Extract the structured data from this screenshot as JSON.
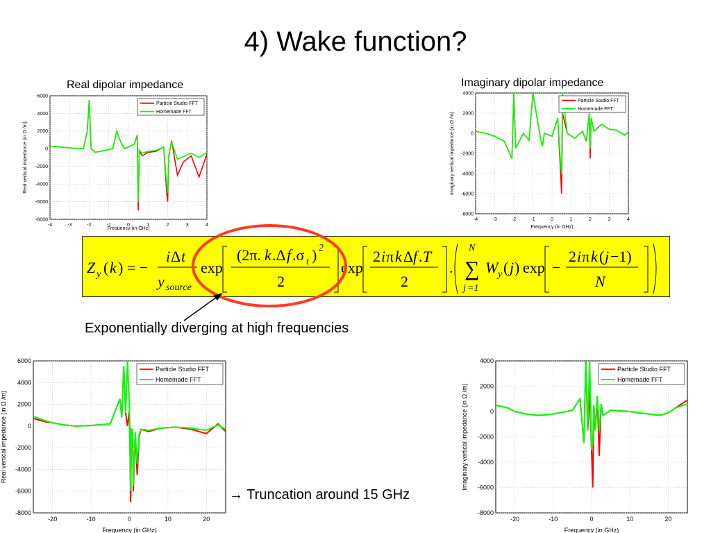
{
  "slide": {
    "title": "4) Wake function?",
    "annotation_exponential": "Exponentially diverging at high frequencies",
    "annotation_truncation_arrow": "→",
    "annotation_truncation": "Truncation around 15 GHz"
  },
  "colors": {
    "series_particle": "#ff0000",
    "series_homemade": "#00ff00",
    "formula_bg": "#ffff00",
    "highlight": "#ff3b1f"
  },
  "formula": {
    "lhs": "Z_y(k) = -",
    "frac1_num": "iΔt",
    "frac1_den": "y_source",
    "exp1": "exp[(2π.k.Δf.σ_t)^2 / 2]",
    "exp2": "exp[2iπkΔf.T / 2]",
    "sum": "∑_{j=1}^{N} W_y(j) exp[-2iπk(j-1)/N]"
  },
  "chart_data": [
    {
      "type": "line",
      "title": "Real dipolar impedance",
      "xlabel": "Frequency (in GHz)",
      "ylabel": "Real vertical impedance (in Ω /m)",
      "xlim": [
        -4,
        4
      ],
      "ylim": [
        -8000,
        6000
      ],
      "xticks": [
        "-4",
        "-3",
        "-2",
        "-1",
        "0",
        "1",
        "2",
        "3",
        "4"
      ],
      "yticks": [
        "6000",
        "4000",
        "2000",
        "0",
        "-2000",
        "-4000",
        "-6000",
        "-8000"
      ],
      "legend": [
        "Particle Studio FFT",
        "Homemade FFT"
      ],
      "legend_position": "top-right",
      "grid": true,
      "series": [
        {
          "name": "Particle Studio FFT",
          "color": "#ff0000",
          "x": [
            -4,
            -3.5,
            -3,
            -2.3,
            -2.1,
            -2,
            -1.9,
            -1.7,
            -1.2,
            -0.8,
            -0.6,
            -0.4,
            -0.2,
            0,
            0.3,
            0.45,
            0.5,
            0.55,
            0.7,
            1.0,
            1.4,
            1.8,
            1.95,
            2.0,
            2.05,
            2.1,
            2.2,
            2.5,
            2.8,
            3.2,
            3.6,
            4.0
          ],
          "y": [
            300,
            200,
            100,
            0,
            2000,
            5500,
            0,
            -400,
            -200,
            0,
            2000,
            800,
            0,
            200,
            500,
            1500,
            -7000,
            -200,
            -800,
            -400,
            -300,
            200,
            -5000,
            -6000,
            -1200,
            -300,
            900,
            -3000,
            -1500,
            -800,
            -3200,
            -600
          ]
        },
        {
          "name": "Homemade FFT",
          "color": "#00ff00",
          "x": [
            -4,
            -3.5,
            -3,
            -2.3,
            -2.1,
            -2,
            -1.9,
            -1.7,
            -1.2,
            -0.8,
            -0.6,
            -0.4,
            -0.2,
            0,
            0.3,
            0.45,
            0.5,
            0.55,
            0.7,
            1.0,
            1.4,
            1.8,
            1.95,
            2.0,
            2.05,
            2.1,
            2.2,
            2.5,
            2.8,
            3.2,
            3.6,
            4.0
          ],
          "y": [
            300,
            200,
            100,
            0,
            2000,
            5400,
            0,
            -400,
            -200,
            0,
            2000,
            800,
            0,
            200,
            500,
            1400,
            -6000,
            -200,
            -500,
            -300,
            -200,
            200,
            -4000,
            -5000,
            -900,
            -200,
            700,
            -1200,
            -900,
            -500,
            -1000,
            -400
          ]
        }
      ]
    },
    {
      "type": "line",
      "title": "Imaginary dipolar impedance",
      "xlabel": "Frequency (in GHz)",
      "ylabel": "Imaginary vertical impedance (in Ω /m)",
      "xlim": [
        -4,
        4
      ],
      "ylim": [
        -8000,
        4000
      ],
      "xticks": [
        "-4",
        "-3",
        "-2",
        "-1",
        "0",
        "1",
        "2",
        "3",
        "4"
      ],
      "yticks": [
        "4000",
        "2000",
        "0",
        "-2000",
        "-4000",
        "-6000",
        "-8000"
      ],
      "legend": [
        "Particle Studio FFT",
        "Homemade FFT"
      ],
      "legend_position": "top-right",
      "grid": true,
      "series": [
        {
          "name": "Particle Studio FFT",
          "color": "#ff0000",
          "x": [
            -4,
            -3.5,
            -3.0,
            -2.5,
            -2.1,
            -2.0,
            -1.9,
            -1.5,
            -1.2,
            -1.0,
            -0.6,
            -0.5,
            -0.4,
            0,
            0.3,
            0.45,
            0.5,
            0.55,
            0.8,
            1.2,
            1.6,
            1.8,
            1.95,
            2.0,
            2.05,
            2.2,
            2.6,
            3.0,
            3.4,
            3.8,
            4.0
          ],
          "y": [
            200,
            0,
            -300,
            -800,
            -2500,
            4000,
            -1500,
            0,
            -700,
            4000,
            -500,
            -1300,
            0,
            -300,
            1500,
            -4000,
            -6000,
            2000,
            0,
            -500,
            200,
            -800,
            2000,
            -2500,
            1500,
            200,
            900,
            400,
            300,
            -200,
            100
          ]
        },
        {
          "name": "Homemade FFT",
          "color": "#00ff00",
          "x": [
            -4,
            -3.5,
            -3.0,
            -2.5,
            -2.1,
            -2.0,
            -1.9,
            -1.5,
            -1.2,
            -1.0,
            -0.6,
            -0.5,
            -0.4,
            0,
            0.3,
            0.45,
            0.5,
            0.55,
            0.8,
            1.2,
            1.6,
            1.8,
            1.95,
            2.0,
            2.05,
            2.2,
            2.6,
            3.0,
            3.4,
            3.8,
            4.0
          ],
          "y": [
            200,
            0,
            -300,
            -800,
            -2500,
            4000,
            -1500,
            0,
            -700,
            4000,
            -500,
            -1300,
            0,
            -300,
            1500,
            -3000,
            -4000,
            4000,
            0,
            -500,
            200,
            -800,
            2000,
            -1500,
            1500,
            200,
            900,
            400,
            300,
            -200,
            100
          ]
        }
      ]
    },
    {
      "type": "line",
      "title": "",
      "xlabel": "Frequency (in GHz)",
      "ylabel": "Real vertical impedance (in Ω /m)",
      "xlim": [
        -25,
        25
      ],
      "ylim": [
        -8000,
        6000
      ],
      "xticks": [
        "-20",
        "-10",
        "0",
        "10",
        "20"
      ],
      "yticks": [
        "6000",
        "4000",
        "2000",
        "0",
        "-2000",
        "-4000",
        "-6000",
        "-8000"
      ],
      "legend": [
        "Particle Studio FFT",
        "Homemade FFT"
      ],
      "legend_position": "top-right",
      "grid": true,
      "series": [
        {
          "name": "Particle Studio FFT",
          "color": "#ff0000",
          "x": [
            -25,
            -22,
            -20,
            -17,
            -14,
            -10,
            -5,
            -2.5,
            -2,
            -1.5,
            -1,
            -0.5,
            0,
            0.3,
            0.5,
            0.8,
            1,
            1.5,
            2,
            2.5,
            3,
            5,
            8,
            12,
            16,
            20,
            23,
            25
          ],
          "y": [
            700,
            400,
            300,
            100,
            0,
            50,
            200,
            2500,
            800,
            5500,
            1200,
            0,
            1500,
            -7000,
            -300,
            -400,
            -6000,
            -600,
            -4500,
            -1000,
            -300,
            -500,
            -200,
            -100,
            -300,
            -700,
            200,
            -500
          ]
        },
        {
          "name": "Homemade FFT",
          "color": "#00ff00",
          "x": [
            -25,
            -22,
            -20,
            -17,
            -14,
            -10,
            -5,
            -2.5,
            -2,
            -1.5,
            -1,
            -0.5,
            0,
            0.3,
            0.5,
            0.8,
            1,
            1.5,
            2,
            2.5,
            3,
            5,
            8,
            12,
            16,
            20,
            23,
            25
          ],
          "y": [
            900,
            500,
            300,
            100,
            0,
            50,
            200,
            2500,
            800,
            5500,
            1200,
            6000,
            1500,
            -6000,
            -300,
            -400,
            -5500,
            -600,
            -3500,
            -800,
            -300,
            -400,
            -200,
            -100,
            -200,
            -400,
            100,
            -300
          ]
        }
      ]
    },
    {
      "type": "line",
      "title": "",
      "xlabel": "Frequency (in GHz)",
      "ylabel": "Imaginary vertical impedance (in Ω /m)",
      "xlim": [
        -25,
        25
      ],
      "ylim": [
        -8000,
        4000
      ],
      "xticks": [
        "-20",
        "-10",
        "0",
        "10",
        "20"
      ],
      "yticks": [
        "4000",
        "2000",
        "0",
        "-2000",
        "-4000",
        "-6000",
        "-8000"
      ],
      "legend": [
        "Particle Studio FFT",
        "Homemade FFT"
      ],
      "legend_position": "top-right",
      "grid": true,
      "series": [
        {
          "name": "Particle Studio FFT",
          "color": "#ff0000",
          "x": [
            -25,
            -22,
            -20,
            -17,
            -14,
            -10,
            -5,
            -3,
            -2,
            -1.5,
            -1,
            -0.5,
            0,
            0.3,
            0.6,
            1,
            1.5,
            2,
            2.5,
            3,
            5,
            10,
            15,
            18,
            20,
            22,
            25
          ],
          "y": [
            500,
            300,
            0,
            -200,
            -300,
            -200,
            100,
            1000,
            -2500,
            4000,
            -1500,
            1500,
            -3000,
            -6000,
            500,
            -1500,
            1200,
            -3500,
            600,
            -300,
            100,
            0,
            -200,
            -300,
            -100,
            300,
            900
          ]
        },
        {
          "name": "Homemade FFT",
          "color": "#00ff00",
          "x": [
            -25,
            -22,
            -20,
            -17,
            -14,
            -10,
            -5,
            -3,
            -2,
            -1.5,
            -1,
            -0.5,
            0,
            0.3,
            0.6,
            1,
            1.5,
            2,
            2.5,
            3,
            5,
            10,
            15,
            18,
            20,
            22,
            25
          ],
          "y": [
            500,
            300,
            0,
            -200,
            -300,
            -200,
            100,
            1000,
            -2500,
            4000,
            -1500,
            4000,
            -3000,
            -2500,
            500,
            -1500,
            1200,
            -1500,
            600,
            -300,
            100,
            0,
            -200,
            -300,
            -100,
            300,
            600
          ]
        }
      ]
    }
  ]
}
